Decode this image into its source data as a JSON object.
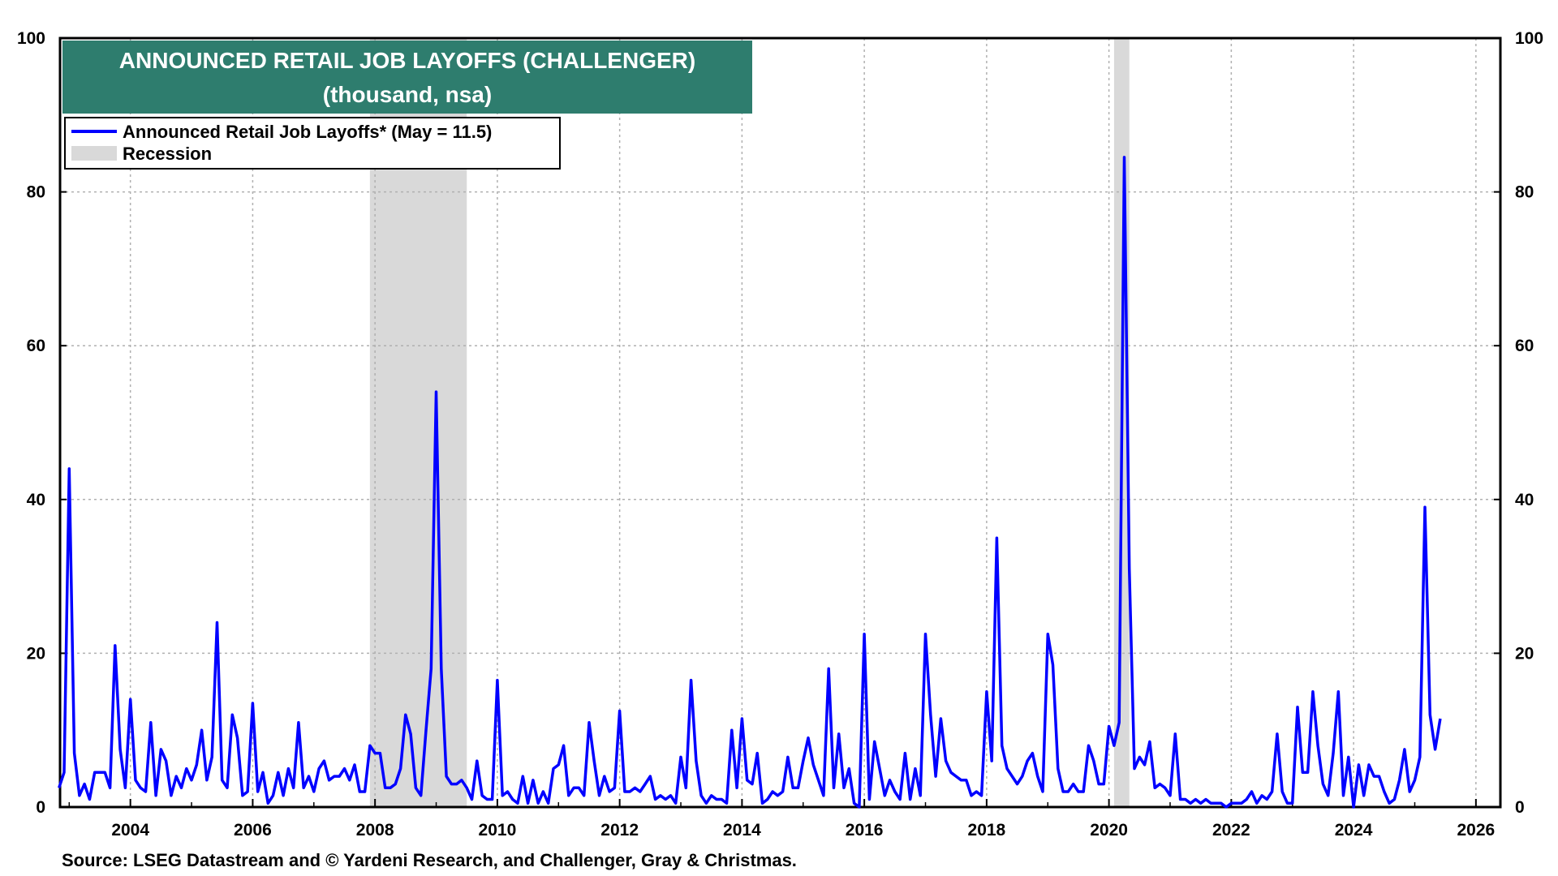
{
  "chart_data": {
    "type": "line",
    "title": "ANNOUNCED RETAIL JOB LAYOFFS (CHALLENGER)",
    "subtitle": "(thousand, nsa)",
    "source": "Source: LSEG Datastream and © Yardeni Research, and Challenger, Gray & Christmas.",
    "xlim": [
      2002.85,
      2026.4
    ],
    "ylim": [
      0,
      100
    ],
    "y_ticks": [
      "0",
      "20",
      "40",
      "60",
      "80",
      "100"
    ],
    "x_ticks": [
      "2004",
      "2006",
      "2008",
      "2010",
      "2012",
      "2014",
      "2016",
      "2018",
      "2020",
      "2022",
      "2024",
      "2026"
    ],
    "grid": true,
    "legend_position": "top-left",
    "colors": {
      "series": "#0000ff",
      "recession": "#d9d9d9",
      "title_bg": "#2e7d6e"
    },
    "legend": [
      {
        "label": "Announced Retail Job Layoffs* (May = 11.5)",
        "kind": "line"
      },
      {
        "label": "Recession",
        "kind": "band"
      }
    ],
    "recessions": [
      {
        "start": "2007-12",
        "end": "2009-06"
      },
      {
        "start": "2020-02",
        "end": "2020-04"
      }
    ],
    "series": [
      {
        "name": "Announced Retail Job Layoffs* (May = 11.5)",
        "start": "2002-11",
        "values": [
          2.5,
          4.5,
          44,
          7,
          1.5,
          3,
          1,
          4.5,
          4.5,
          4.5,
          2.5,
          21,
          7.5,
          2.5,
          14,
          3.5,
          2.5,
          2,
          11,
          1.5,
          7.5,
          6,
          1.5,
          4,
          2.5,
          5,
          3.5,
          5.5,
          10,
          3.5,
          6.5,
          24,
          3.5,
          2.5,
          12,
          9,
          1.5,
          2,
          13.5,
          2,
          4.5,
          0.5,
          1.5,
          4.5,
          1.5,
          5,
          2.5,
          11,
          2.5,
          4,
          2,
          5,
          6,
          3.5,
          4,
          4,
          5,
          3.5,
          5.5,
          2,
          2,
          8,
          7,
          7,
          2.5,
          2.5,
          3,
          5,
          12,
          9.5,
          2.5,
          1.5,
          10,
          18,
          54,
          18,
          4,
          3,
          3,
          3.5,
          2.5,
          1,
          6,
          1.5,
          1,
          1,
          16.5,
          1.5,
          2,
          1,
          0.5,
          4,
          0.5,
          3.5,
          0.5,
          2,
          0.5,
          5,
          5.5,
          8,
          1.5,
          2.5,
          2.5,
          1.5,
          11,
          6,
          1.5,
          4,
          2,
          2.5,
          12.5,
          2,
          2,
          2.5,
          2,
          3,
          4,
          1,
          1.5,
          1,
          1.5,
          0.5,
          6.5,
          2.5,
          16.5,
          6,
          1.5,
          0.5,
          1.5,
          1,
          1,
          0.5,
          10,
          2.5,
          11.5,
          3.5,
          3,
          7,
          0.5,
          1,
          2,
          1.5,
          2,
          6.5,
          2.5,
          2.5,
          6,
          9,
          5.5,
          3.5,
          1.5,
          18,
          2.5,
          9.5,
          2.5,
          5,
          0.5,
          0,
          22.5,
          1,
          8.5,
          5,
          1.5,
          3.5,
          2,
          1,
          7,
          1,
          5,
          1.5,
          22.5,
          12,
          4,
          11.5,
          6,
          4.5,
          4,
          3.5,
          3.5,
          1.5,
          2,
          1.5,
          15,
          6,
          35,
          8,
          5,
          4,
          3,
          4,
          6,
          7,
          4,
          2,
          22.5,
          18.5,
          5,
          2,
          2,
          3,
          2,
          2,
          8,
          6,
          3,
          3,
          10.5,
          8,
          11,
          84.5,
          31,
          5,
          6.5,
          5.5,
          8.5,
          2.5,
          3,
          2.5,
          1.5,
          9.5,
          1,
          1,
          0.5,
          1,
          0.5,
          1,
          0.5,
          0.5,
          0.5,
          0,
          0.5,
          0.5,
          0.5,
          1,
          2,
          0.5,
          1.5,
          1,
          2,
          9.5,
          2,
          0.5,
          0.5,
          13,
          4.5,
          4.5,
          15,
          8,
          3,
          1.5,
          7,
          15,
          1.5,
          6.5,
          0,
          5.5,
          1.5,
          5.5,
          4,
          4,
          2,
          0.5,
          1,
          3.5,
          7.5,
          2,
          3.5,
          6.5,
          39,
          12,
          7.5,
          11.5
        ]
      }
    ]
  }
}
